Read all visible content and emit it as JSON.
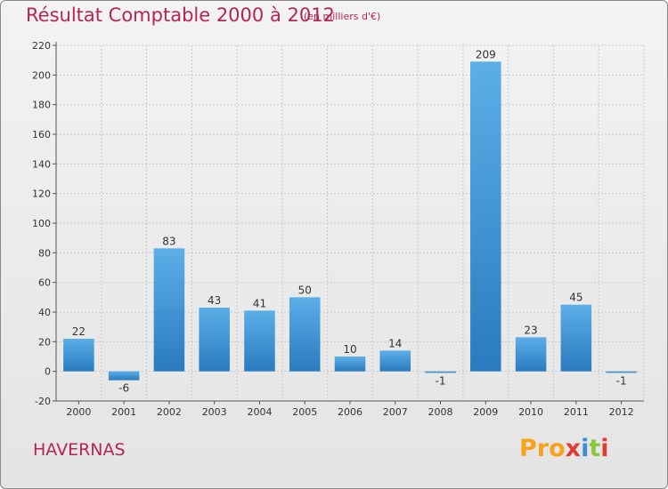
{
  "chart_data": {
    "type": "bar",
    "title": "Résultat Comptable 2000 à 2012",
    "subtitle": "(en milliers d'€)",
    "categories": [
      "2000",
      "2001",
      "2002",
      "2003",
      "2004",
      "2005",
      "2006",
      "2007",
      "2008",
      "2009",
      "2010",
      "2011",
      "2012"
    ],
    "values": [
      22,
      -6,
      83,
      43,
      41,
      50,
      10,
      14,
      -1,
      209,
      23,
      45,
      -1
    ],
    "value_labels": [
      "22",
      "-6",
      "83",
      "43",
      "41",
      "50",
      "10",
      "14",
      "-1",
      "209",
      "23",
      "45",
      "-1"
    ],
    "ylim": [
      -20,
      220
    ],
    "yticks": [
      -20,
      0,
      20,
      40,
      60,
      80,
      100,
      120,
      140,
      160,
      180,
      200,
      220
    ],
    "xlabel": "",
    "ylabel": "",
    "grid": true,
    "bar_color": "#3d93d9",
    "title_color": "#b5264f"
  },
  "place_name": "HAVERNAS",
  "logo": {
    "part1": "Pro",
    "part2": "x",
    "part3": "i",
    "part4": "t",
    "part5": "i"
  }
}
